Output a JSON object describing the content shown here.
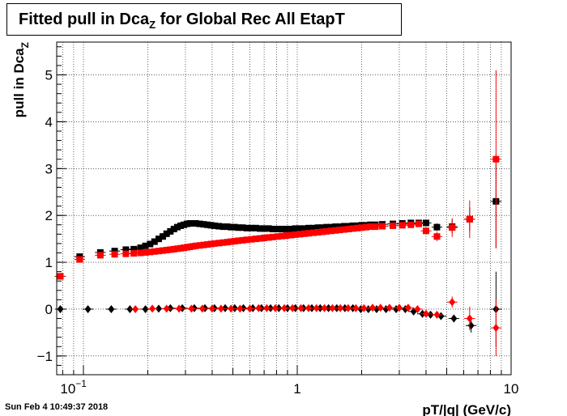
{
  "title": {
    "prefix": "Fitted pull in Dca",
    "sub": "Z",
    "suffix": " for Global Rec All EtapT"
  },
  "timestamp": "Sun Feb  4 10:49:37 2018",
  "chart_data": {
    "type": "scatter",
    "title": "Fitted pull in DcaZ for Global Rec All EtapT",
    "xlabel": "pT/|q| (GeV/c)",
    "ylabel": {
      "main": "pull in Dca",
      "sub": "Z"
    },
    "xscale": "log",
    "xlim": [
      0.075,
      10
    ],
    "ylim": [
      -1.4,
      5.7
    ],
    "xticks": [
      {
        "value": 0.1,
        "base": "10",
        "exp": "−1"
      },
      {
        "value": 1,
        "base": "1",
        "exp": ""
      },
      {
        "value": 10,
        "base": "10",
        "exp": ""
      }
    ],
    "yticks": [
      -1,
      0,
      1,
      2,
      3,
      4,
      5
    ],
    "ytick_labels": [
      "−1",
      "0",
      "1",
      "2",
      "3",
      "4",
      "5"
    ],
    "grid": true,
    "colors": {
      "black": "#000000",
      "red": "#ff0000"
    },
    "series": [
      {
        "color": "#000000",
        "marker": "square",
        "x": [
          0.078,
          0.096,
          0.12,
          0.14,
          0.158,
          0.172,
          0.185,
          0.195,
          0.205,
          0.215,
          0.225,
          0.235,
          0.245,
          0.255,
          0.265,
          0.275,
          0.285,
          0.295,
          0.305,
          0.315,
          0.325,
          0.335,
          0.35,
          0.365,
          0.38,
          0.395,
          0.41,
          0.43,
          0.45,
          0.47,
          0.49,
          0.51,
          0.53,
          0.555,
          0.58,
          0.61,
          0.64,
          0.67,
          0.7,
          0.735,
          0.77,
          0.81,
          0.85,
          0.89,
          0.935,
          0.98,
          1.03,
          1.08,
          1.13,
          1.19,
          1.25,
          1.31,
          1.37,
          1.44,
          1.51,
          1.58,
          1.66,
          1.74,
          1.82,
          1.91,
          2.0,
          2.1,
          2.2,
          2.32,
          2.5,
          2.8,
          3.1,
          3.4,
          3.7,
          4.0,
          4.5,
          5.3,
          6.4,
          8.5
        ],
        "y": [
          0.7,
          1.12,
          1.21,
          1.24,
          1.27,
          1.28,
          1.31,
          1.35,
          1.39,
          1.44,
          1.5,
          1.55,
          1.61,
          1.66,
          1.71,
          1.75,
          1.78,
          1.8,
          1.82,
          1.83,
          1.83,
          1.83,
          1.82,
          1.81,
          1.8,
          1.79,
          1.78,
          1.77,
          1.76,
          1.76,
          1.75,
          1.75,
          1.74,
          1.74,
          1.73,
          1.73,
          1.73,
          1.72,
          1.72,
          1.72,
          1.71,
          1.71,
          1.71,
          1.71,
          1.71,
          1.72,
          1.72,
          1.72,
          1.73,
          1.73,
          1.74,
          1.74,
          1.75,
          1.75,
          1.76,
          1.76,
          1.77,
          1.77,
          1.78,
          1.78,
          1.79,
          1.79,
          1.8,
          1.8,
          1.81,
          1.82,
          1.83,
          1.84,
          1.84,
          1.84,
          1.75,
          1.76,
          1.92,
          2.3
        ],
        "yerr": [
          0.05,
          0.02,
          0.02,
          0.02,
          0.02,
          0.02,
          0.02,
          0.02,
          0.02,
          0.02,
          0.02,
          0.02,
          0.02,
          0.02,
          0.02,
          0.02,
          0.02,
          0.02,
          0.02,
          0.02,
          0.02,
          0.02,
          0.02,
          0.02,
          0.02,
          0.02,
          0.02,
          0.02,
          0.02,
          0.02,
          0.02,
          0.02,
          0.02,
          0.02,
          0.02,
          0.02,
          0.02,
          0.02,
          0.02,
          0.02,
          0.02,
          0.02,
          0.02,
          0.02,
          0.02,
          0.02,
          0.02,
          0.02,
          0.02,
          0.02,
          0.02,
          0.02,
          0.02,
          0.02,
          0.02,
          0.02,
          0.02,
          0.02,
          0.02,
          0.02,
          0.02,
          0.02,
          0.02,
          0.02,
          0.03,
          0.03,
          0.03,
          0.04,
          0.05,
          0.06,
          0.08,
          0.15,
          0.25,
          1.0
        ]
      },
      {
        "color": "#ff0000",
        "marker": "square",
        "x": [
          0.078,
          0.096,
          0.12,
          0.14,
          0.158,
          0.172,
          0.185,
          0.195,
          0.205,
          0.215,
          0.225,
          0.235,
          0.245,
          0.255,
          0.265,
          0.275,
          0.285,
          0.295,
          0.305,
          0.315,
          0.325,
          0.335,
          0.35,
          0.365,
          0.38,
          0.395,
          0.41,
          0.43,
          0.45,
          0.47,
          0.49,
          0.51,
          0.53,
          0.555,
          0.58,
          0.61,
          0.64,
          0.67,
          0.7,
          0.735,
          0.77,
          0.81,
          0.85,
          0.89,
          0.935,
          0.98,
          1.03,
          1.08,
          1.13,
          1.19,
          1.25,
          1.31,
          1.37,
          1.44,
          1.51,
          1.58,
          1.66,
          1.74,
          1.82,
          1.91,
          2.0,
          2.1,
          2.2,
          2.32,
          2.5,
          2.8,
          3.1,
          3.4,
          3.7,
          4.0,
          4.5,
          5.3,
          6.4,
          8.5
        ],
        "y": [
          0.7,
          1.06,
          1.15,
          1.17,
          1.18,
          1.19,
          1.2,
          1.21,
          1.22,
          1.23,
          1.24,
          1.25,
          1.26,
          1.27,
          1.28,
          1.29,
          1.3,
          1.31,
          1.32,
          1.33,
          1.34,
          1.35,
          1.36,
          1.37,
          1.38,
          1.39,
          1.4,
          1.41,
          1.42,
          1.43,
          1.44,
          1.45,
          1.46,
          1.47,
          1.48,
          1.49,
          1.5,
          1.51,
          1.52,
          1.53,
          1.54,
          1.55,
          1.56,
          1.57,
          1.58,
          1.59,
          1.6,
          1.61,
          1.62,
          1.63,
          1.64,
          1.65,
          1.66,
          1.67,
          1.68,
          1.69,
          1.7,
          1.71,
          1.72,
          1.73,
          1.74,
          1.75,
          1.76,
          1.76,
          1.77,
          1.78,
          1.79,
          1.8,
          1.82,
          1.67,
          1.55,
          1.74,
          1.92,
          3.2
        ],
        "yerr": [
          0.05,
          0.02,
          0.02,
          0.02,
          0.02,
          0.02,
          0.02,
          0.02,
          0.02,
          0.02,
          0.02,
          0.02,
          0.02,
          0.02,
          0.02,
          0.02,
          0.02,
          0.02,
          0.02,
          0.02,
          0.02,
          0.02,
          0.02,
          0.02,
          0.02,
          0.02,
          0.02,
          0.02,
          0.02,
          0.02,
          0.02,
          0.02,
          0.02,
          0.02,
          0.02,
          0.02,
          0.02,
          0.02,
          0.02,
          0.02,
          0.02,
          0.02,
          0.02,
          0.02,
          0.02,
          0.02,
          0.02,
          0.02,
          0.02,
          0.02,
          0.02,
          0.02,
          0.02,
          0.02,
          0.02,
          0.02,
          0.02,
          0.02,
          0.02,
          0.02,
          0.02,
          0.02,
          0.02,
          0.02,
          0.03,
          0.03,
          0.03,
          0.04,
          0.05,
          0.06,
          0.1,
          0.2,
          0.4,
          1.9
        ]
      },
      {
        "color": "#000000",
        "marker": "diamond",
        "x": [
          0.078,
          0.105,
          0.135,
          0.165,
          0.195,
          0.225,
          0.255,
          0.29,
          0.33,
          0.37,
          0.41,
          0.46,
          0.51,
          0.56,
          0.62,
          0.68,
          0.75,
          0.82,
          0.9,
          0.98,
          1.07,
          1.17,
          1.28,
          1.4,
          1.53,
          1.67,
          1.82,
          1.98,
          2.15,
          2.35,
          2.6,
          2.9,
          3.2,
          3.5,
          3.85,
          4.2,
          4.7,
          5.4,
          6.5,
          8.5
        ],
        "y": [
          0.0,
          0.0,
          0.0,
          0.0,
          0.0,
          0.01,
          0.02,
          0.02,
          0.02,
          0.02,
          0.02,
          0.02,
          0.02,
          0.02,
          0.02,
          0.02,
          0.02,
          0.02,
          0.02,
          0.02,
          0.02,
          0.02,
          0.02,
          0.02,
          0.02,
          0.02,
          0.02,
          0.0,
          0.0,
          0.0,
          0.0,
          0.0,
          0.0,
          -0.05,
          -0.1,
          -0.12,
          -0.15,
          -0.2,
          -0.35,
          0.0
        ],
        "yerr": [
          0.02,
          0.02,
          0.02,
          0.02,
          0.02,
          0.02,
          0.02,
          0.02,
          0.02,
          0.02,
          0.02,
          0.02,
          0.02,
          0.02,
          0.02,
          0.02,
          0.02,
          0.02,
          0.02,
          0.02,
          0.02,
          0.02,
          0.02,
          0.02,
          0.02,
          0.02,
          0.02,
          0.02,
          0.02,
          0.02,
          0.02,
          0.02,
          0.03,
          0.03,
          0.04,
          0.05,
          0.06,
          0.08,
          0.15,
          0.8
        ]
      },
      {
        "color": "#ff0000",
        "marker": "diamond",
        "x": [
          0.175,
          0.21,
          0.245,
          0.28,
          0.32,
          0.36,
          0.4,
          0.44,
          0.49,
          0.54,
          0.6,
          0.66,
          0.72,
          0.79,
          0.87,
          0.95,
          1.04,
          1.13,
          1.23,
          1.34,
          1.46,
          1.59,
          1.73,
          1.88,
          2.05,
          2.25,
          2.45,
          2.7,
          3.0,
          3.3,
          3.65,
          4.0,
          4.5,
          5.3,
          6.4,
          8.5
        ],
        "y": [
          0.0,
          0.01,
          0.01,
          0.01,
          0.01,
          0.01,
          0.01,
          0.01,
          0.01,
          0.01,
          0.01,
          0.02,
          0.02,
          0.02,
          0.02,
          0.02,
          0.02,
          0.02,
          0.02,
          0.02,
          0.02,
          0.02,
          0.02,
          0.02,
          0.02,
          0.03,
          0.03,
          0.03,
          0.03,
          0.03,
          0.0,
          -0.1,
          -0.12,
          0.15,
          -0.2,
          -0.4
        ],
        "yerr": [
          0.02,
          0.02,
          0.02,
          0.02,
          0.02,
          0.02,
          0.02,
          0.02,
          0.02,
          0.02,
          0.02,
          0.02,
          0.02,
          0.02,
          0.02,
          0.02,
          0.02,
          0.02,
          0.02,
          0.02,
          0.02,
          0.02,
          0.02,
          0.02,
          0.02,
          0.02,
          0.02,
          0.02,
          0.03,
          0.03,
          0.04,
          0.05,
          0.06,
          0.12,
          0.25,
          0.6
        ]
      }
    ]
  }
}
